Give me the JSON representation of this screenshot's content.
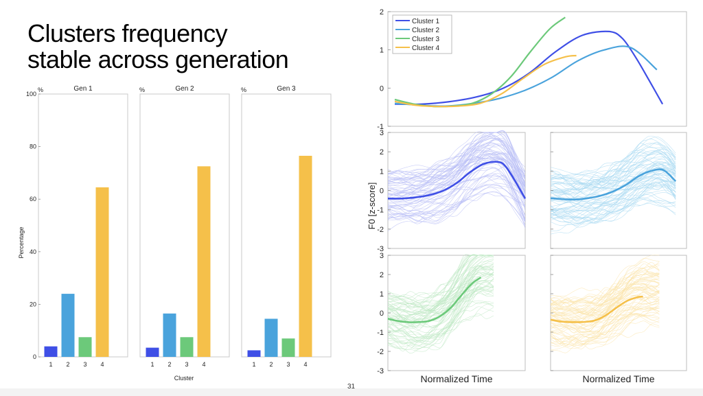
{
  "slide": {
    "title_lines": [
      "Clusters frequency",
      "stable across generation"
    ],
    "page_number": "31"
  },
  "colors": {
    "cluster1": "#3f4fe6",
    "cluster2": "#4aa3dc",
    "cluster3": "#6cc97a",
    "cluster4": "#f5c04a",
    "cluster1_light": "#b8bdf5",
    "cluster2_light": "#a9daf2",
    "cluster3_light": "#bfe8c4",
    "cluster4_light": "#fbe4ab"
  },
  "chart_data": [
    {
      "type": "bar",
      "title": "Gen 1",
      "unit_label": "%",
      "ylabel": "Percentage",
      "xlabel": "Cluster",
      "categories": [
        "1",
        "2",
        "3",
        "4"
      ],
      "values": [
        4,
        24,
        7.5,
        64.5
      ],
      "ylim": [
        0,
        100
      ],
      "yticks": [
        0,
        20,
        40,
        60,
        80,
        100
      ]
    },
    {
      "type": "bar",
      "title": "Gen 2",
      "unit_label": "%",
      "categories": [
        "1",
        "2",
        "3",
        "4"
      ],
      "values": [
        3.5,
        16.5,
        7.5,
        72.5
      ],
      "ylim": [
        0,
        100
      ]
    },
    {
      "type": "bar",
      "title": "Gen 3",
      "unit_label": "%",
      "categories": [
        "1",
        "2",
        "3",
        "4"
      ],
      "values": [
        2.5,
        14.5,
        7,
        76.5
      ],
      "ylim": [
        0,
        100
      ]
    },
    {
      "type": "line",
      "legend": [
        "Cluster 1",
        "Cluster 2",
        "Cluster 3",
        "Cluster 4"
      ],
      "legend_position": "top-left",
      "ylim": [
        -1,
        2
      ],
      "yticks": [
        "-1",
        "0",
        "1",
        "2"
      ],
      "series": [
        {
          "name": "Cluster 1",
          "x": [
            0,
            0.1,
            0.2,
            0.3,
            0.4,
            0.5,
            0.6,
            0.7,
            0.8,
            0.85,
            0.9,
            0.95,
            1.0
          ],
          "y": [
            -0.42,
            -0.42,
            -0.36,
            -0.24,
            -0.02,
            0.38,
            0.95,
            1.38,
            1.48,
            1.3,
            0.8,
            0.2,
            -0.42
          ]
        },
        {
          "name": "Cluster 2",
          "x": [
            0,
            0.1,
            0.2,
            0.3,
            0.4,
            0.5,
            0.6,
            0.7,
            0.8,
            0.9,
            1.0
          ],
          "y": [
            -0.4,
            -0.45,
            -0.47,
            -0.4,
            -0.27,
            -0.05,
            0.28,
            0.72,
            1.0,
            1.06,
            0.48
          ]
        },
        {
          "name": "Cluster 3",
          "x": [
            0,
            0.1,
            0.2,
            0.3,
            0.4,
            0.5,
            0.6,
            0.7,
            0.8,
            0.88
          ],
          "y": [
            -0.3,
            -0.42,
            -0.48,
            -0.47,
            -0.4,
            -0.15,
            0.3,
            0.95,
            1.55,
            1.85
          ]
        },
        {
          "name": "Cluster 4",
          "x": [
            0,
            0.1,
            0.2,
            0.3,
            0.4,
            0.5,
            0.6,
            0.7,
            0.8,
            0.85
          ],
          "y": [
            -0.35,
            -0.45,
            -0.48,
            -0.47,
            -0.4,
            -0.15,
            0.25,
            0.62,
            0.82,
            0.85
          ]
        }
      ]
    },
    {
      "type": "line",
      "ylabel": "F0 [z-score]",
      "ylim": [
        -3,
        3
      ],
      "yticks": [
        "-3",
        "-2",
        "-1",
        "0",
        "1",
        "2",
        "3"
      ],
      "series": [
        {
          "name": "Cluster 1",
          "x": [
            0,
            0.1,
            0.2,
            0.3,
            0.4,
            0.5,
            0.6,
            0.7,
            0.8,
            0.85,
            0.9,
            0.95,
            1.0
          ],
          "y": [
            -0.42,
            -0.42,
            -0.36,
            -0.24,
            -0.02,
            0.38,
            0.95,
            1.38,
            1.48,
            1.3,
            0.8,
            0.2,
            -0.42
          ]
        }
      ]
    },
    {
      "type": "line",
      "ylim": [
        -3,
        3
      ],
      "series": [
        {
          "name": "Cluster 2",
          "x": [
            0,
            0.1,
            0.2,
            0.3,
            0.4,
            0.5,
            0.6,
            0.7,
            0.8,
            0.9,
            1.0
          ],
          "y": [
            -0.4,
            -0.45,
            -0.47,
            -0.4,
            -0.27,
            -0.05,
            0.28,
            0.72,
            1.0,
            1.06,
            0.48
          ]
        }
      ]
    },
    {
      "type": "line",
      "xlabel": "Normalized Time",
      "ylim": [
        -3,
        3
      ],
      "yticks": [
        "-3",
        "-2",
        "-1",
        "0",
        "1",
        "2",
        "3"
      ],
      "series": [
        {
          "name": "Cluster 3",
          "x": [
            0,
            0.1,
            0.2,
            0.3,
            0.4,
            0.5,
            0.6,
            0.7,
            0.8,
            0.88
          ],
          "y": [
            -0.3,
            -0.42,
            -0.48,
            -0.47,
            -0.4,
            -0.15,
            0.3,
            0.95,
            1.55,
            1.85
          ]
        }
      ]
    },
    {
      "type": "line",
      "xlabel": "Normalized Time",
      "ylim": [
        -3,
        3
      ],
      "series": [
        {
          "name": "Cluster 4",
          "x": [
            0,
            0.1,
            0.2,
            0.3,
            0.4,
            0.5,
            0.6,
            0.7,
            0.8,
            0.85
          ],
          "y": [
            -0.35,
            -0.45,
            -0.48,
            -0.47,
            -0.4,
            -0.15,
            0.25,
            0.62,
            0.82,
            0.85
          ]
        }
      ]
    }
  ]
}
